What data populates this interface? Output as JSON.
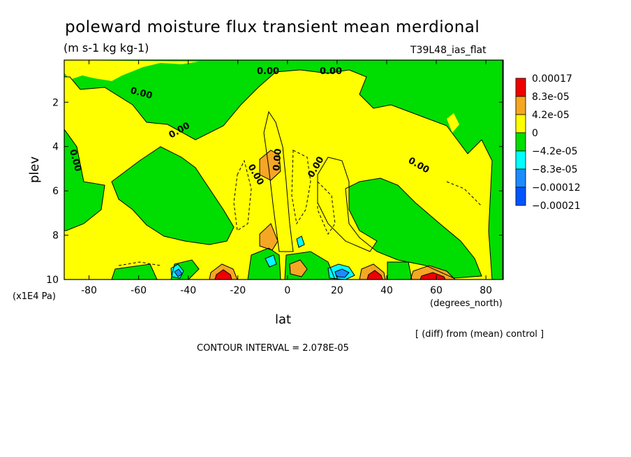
{
  "chart_data": {
    "type": "heatmap",
    "title": "poleward moisture flux transient mean merdional",
    "units": "(m s-1 kg kg-1)",
    "run_label": "T39L48_ias_flat",
    "xlabel": "lat",
    "x_units": "(degrees_north)",
    "ylabel": "plev",
    "y_units": "(x1E4 Pa)",
    "xlim": [
      -90,
      87
    ],
    "ylim": [
      10,
      0.1
    ],
    "y_inverted": true,
    "x_ticks": [
      -80,
      -60,
      -40,
      -20,
      0,
      20,
      40,
      60,
      80
    ],
    "y_ticks": [
      2,
      4,
      6,
      8,
      10
    ],
    "footer_note": "[ (diff) from (mean) control ]",
    "contour_interval_text": "CONTOUR INTERVAL = 2.078E-05",
    "contour_label": "0.00",
    "colorbar": {
      "labels": [
        "0.00017",
        "8.3e-05",
        "4.2e-05",
        "0",
        "−4.2e-05",
        "−8.3e-05",
        "−0.00012",
        "−0.00021"
      ],
      "colors": [
        "#ee0000",
        "#f5a623",
        "#ffff00",
        "#00dd00",
        "#00ffff",
        "#1a8cff",
        "#0055ff"
      ]
    },
    "colors": {
      "yellow": "#ffff00",
      "green": "#00dd00",
      "orange": "#f5a623",
      "red": "#ee0000",
      "cyan": "#00ffff",
      "blue": "#1a8cff"
    }
  }
}
